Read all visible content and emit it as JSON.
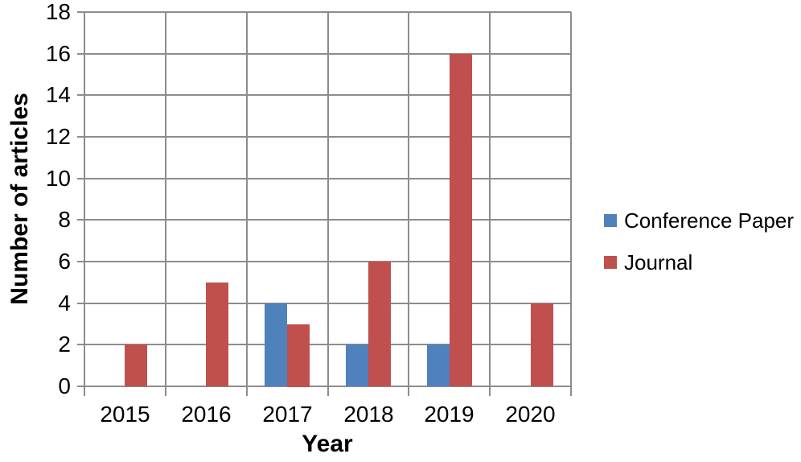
{
  "chart_data": {
    "type": "bar",
    "title": "",
    "categories": [
      "2015",
      "2016",
      "2017",
      "2018",
      "2019",
      "2020"
    ],
    "series": [
      {
        "name": "Conference Paper",
        "color": "#4F81BD",
        "values": [
          0,
          0,
          4,
          2,
          2,
          0
        ]
      },
      {
        "name": "Journal",
        "color": "#C0504D",
        "values": [
          2,
          5,
          3,
          6,
          16,
          4
        ]
      }
    ],
    "xlabel": "Year",
    "ylabel": "Number of articles",
    "ylim": [
      0,
      18
    ],
    "ytick_step": 2,
    "yticks": [
      "0",
      "2",
      "4",
      "6",
      "8",
      "10",
      "12",
      "14",
      "16",
      "18"
    ],
    "grid": "both",
    "legend_position": "right"
  },
  "styles": {
    "gridline_color": "#8C8C8C",
    "text_color": "#000000",
    "background": "#FFFFFF",
    "conference_paper_color": "#4F81BD",
    "journal_color": "#C0504D"
  }
}
